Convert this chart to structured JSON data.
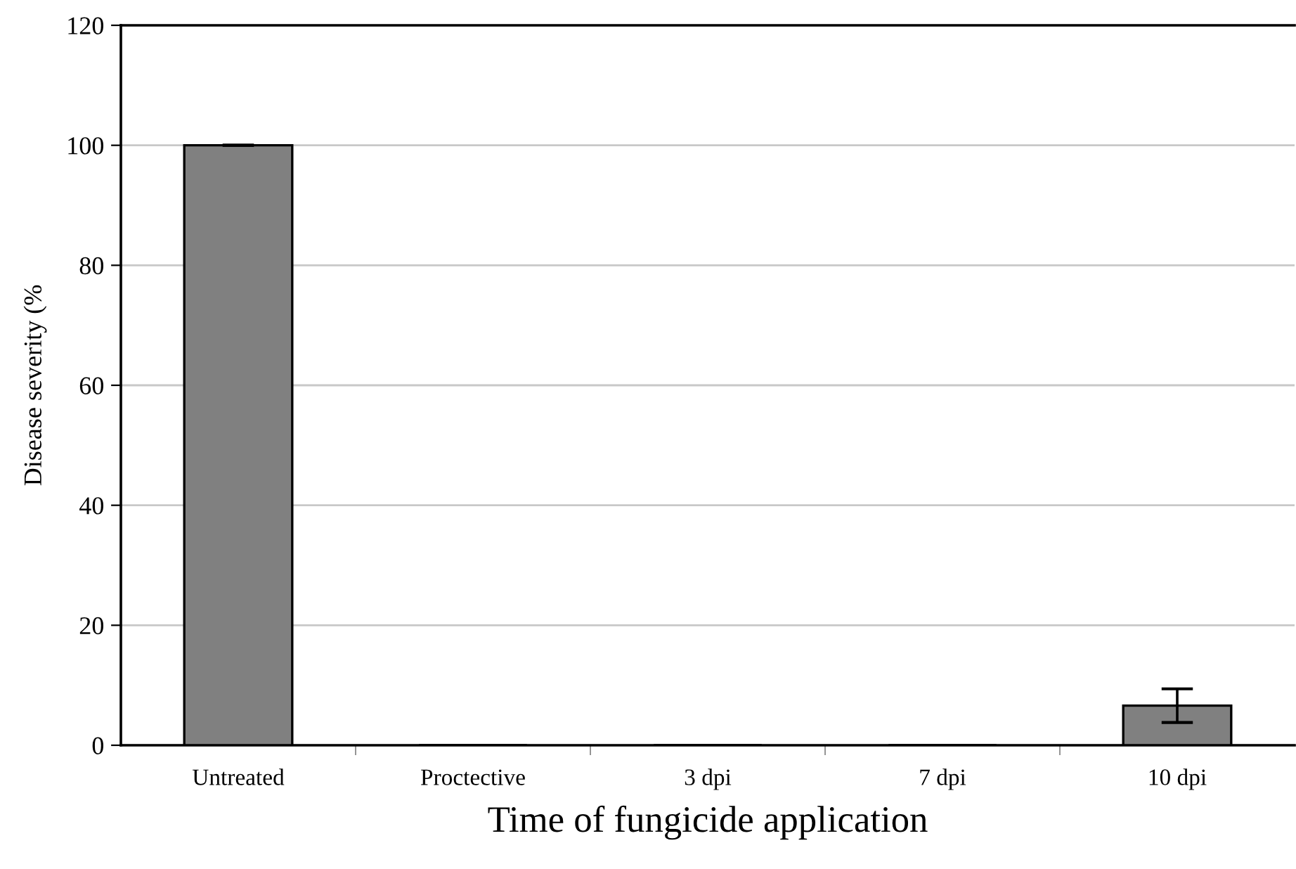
{
  "chart_data": {
    "type": "bar",
    "xlabel": "Time of fungicide application",
    "ylabel": "Disease severity (%",
    "categories": [
      "Untreated",
      "Proctective",
      "3 dpi",
      "7 dpi",
      "10 dpi"
    ],
    "values": [
      100,
      0,
      0,
      0,
      6.6
    ],
    "errors": [
      0,
      null,
      null,
      null,
      2.8
    ],
    "color": "#808080",
    "ylim": [
      0,
      120
    ],
    "yticks": [
      0,
      20,
      40,
      60,
      80,
      100,
      120
    ],
    "grid": "y"
  }
}
